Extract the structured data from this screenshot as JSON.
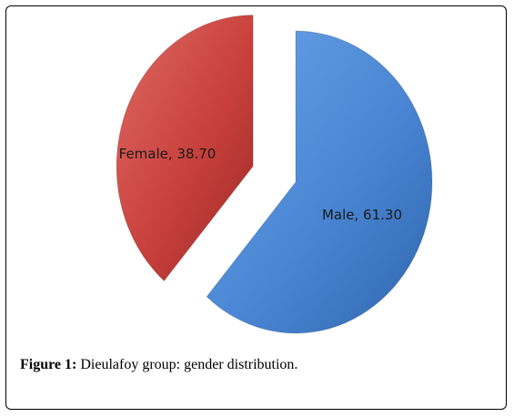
{
  "figure": {
    "caption_label": "Figure 1:",
    "caption_text": " Dieulafoy group: gender distribution."
  },
  "chart_data": {
    "type": "pie",
    "exploded": true,
    "style": "3d-shaded",
    "slices": [
      {
        "label": "Male, 61.30",
        "name": "Male",
        "value": 61.3,
        "color": "#4a86d4"
      },
      {
        "label": "Female, 38.70",
        "name": "Female",
        "value": 38.7,
        "color": "#c8403c"
      }
    ]
  }
}
